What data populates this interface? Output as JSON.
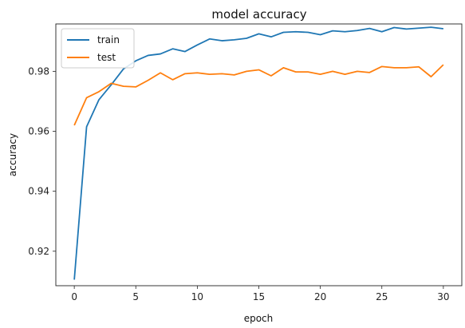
{
  "chart_data": {
    "type": "line",
    "title": "model accuracy",
    "xlabel": "epoch",
    "ylabel": "accuracy",
    "xlim": [
      -1.5,
      31.5
    ],
    "ylim": [
      0.9085,
      0.9958
    ],
    "xticks": [
      0,
      5,
      10,
      15,
      20,
      25,
      30
    ],
    "yticks": [
      0.92,
      0.94,
      0.96,
      0.98
    ],
    "ytick_labels": [
      "0.92",
      "0.94",
      "0.96",
      "0.98"
    ],
    "grid": false,
    "legend_position": "top-left",
    "x": [
      0,
      1,
      2,
      3,
      4,
      5,
      6,
      7,
      8,
      9,
      10,
      11,
      12,
      13,
      14,
      15,
      16,
      17,
      18,
      19,
      20,
      21,
      22,
      23,
      24,
      25,
      26,
      27,
      28,
      29,
      30
    ],
    "series": [
      {
        "name": "train",
        "color": "#1f77b4",
        "values": [
          0.9105,
          0.9615,
          0.9705,
          0.9755,
          0.9808,
          0.9835,
          0.9853,
          0.9858,
          0.9875,
          0.9866,
          0.9888,
          0.9908,
          0.9902,
          0.9905,
          0.991,
          0.9925,
          0.9915,
          0.993,
          0.9932,
          0.993,
          0.9922,
          0.9935,
          0.9932,
          0.9936,
          0.9943,
          0.9932,
          0.9946,
          0.9941,
          0.9944,
          0.9947,
          0.9942
        ]
      },
      {
        "name": "test",
        "color": "#ff7f0e",
        "values": [
          0.962,
          0.9712,
          0.9732,
          0.976,
          0.975,
          0.9748,
          0.977,
          0.9795,
          0.9772,
          0.9792,
          0.9795,
          0.979,
          0.9792,
          0.9788,
          0.98,
          0.9805,
          0.9785,
          0.9812,
          0.9798,
          0.9798,
          0.979,
          0.98,
          0.979,
          0.98,
          0.9796,
          0.9816,
          0.9812,
          0.9812,
          0.9815,
          0.9782,
          0.9822
        ]
      }
    ]
  }
}
